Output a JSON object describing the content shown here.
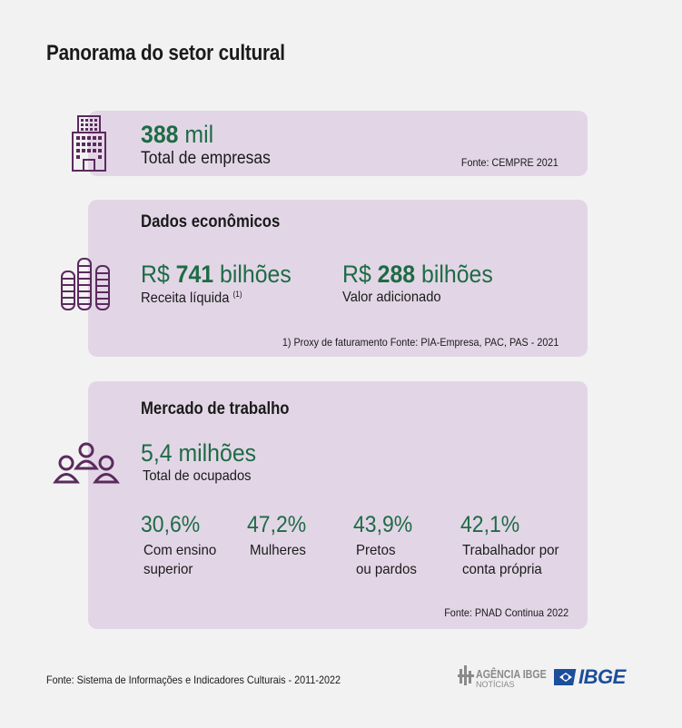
{
  "title": "Panorama do setor cultural",
  "empresas": {
    "value": "388",
    "unit": "mil",
    "label": "Total de empresas",
    "source": "Fonte: CEMPRE 2021",
    "icon": "building-icon"
  },
  "economicos": {
    "heading": "Dados econômicos",
    "icon": "coins-stack-icon",
    "receita": {
      "prefix": "R$",
      "value": "741",
      "unit": "bilhões",
      "label": "Receita líquida",
      "note": "(1)"
    },
    "valor": {
      "prefix": "R$",
      "value": "288",
      "unit": "bilhões",
      "label": "Valor adicionado"
    },
    "source": "1) Proxy de faturamento Fonte: PIA-Empresa, PAC, PAS - 2021"
  },
  "trabalho": {
    "heading": "Mercado de trabalho",
    "icon": "people-group-icon",
    "ocupados": {
      "value": "5,4",
      "unit": "milhões",
      "label": "Total de ocupados"
    },
    "stats": [
      {
        "value": "30,6%",
        "label1": "Com ensino",
        "label2": "superior"
      },
      {
        "value": "47,2%",
        "label1": "Mulheres",
        "label2": ""
      },
      {
        "value": "43,9%",
        "label1": "Pretos",
        "label2": "ou pardos"
      },
      {
        "value": "42,1%",
        "label1": "Trabalhador por",
        "label2": "conta própria"
      }
    ],
    "source": "Fonte: PNAD Continua 2022"
  },
  "footer": "Fonte: Sistema de Informações e Indicadores Culturais - 2011-2022",
  "logos": {
    "agencia_line1": "AGÊNCIA IBGE",
    "agencia_line2": "NOTÍCIAS",
    "ibge": "IBGE"
  },
  "colors": {
    "card": "#e2d6e6",
    "green": "#1e6b45",
    "icon": "#5b2a5e",
    "ibge_blue": "#1c4e9c"
  }
}
